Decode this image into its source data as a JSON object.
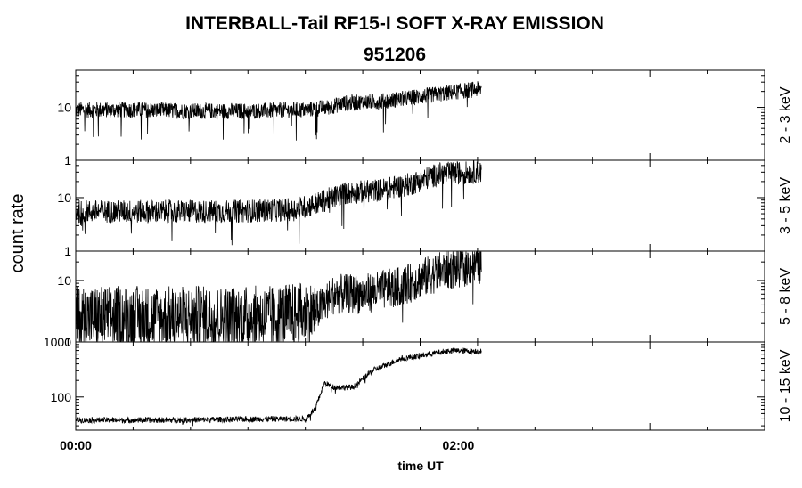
{
  "chart_data": {
    "type": "line",
    "title": "INTERBALL-Tail RF15-I SOFT X-RAY EMISSION",
    "subtitle": "951206",
    "xlabel": "time UT",
    "ylabel": "count rate",
    "x_ticks": [
      "00:00",
      "02:00"
    ],
    "x_range_hours": [
      0,
      3.6
    ],
    "data_end_hours": 2.12,
    "y_scale": "log",
    "panels": [
      {
        "label": "2 - 3 keV",
        "ylim": [
          1,
          50
        ],
        "yticks": [
          "10",
          "1"
        ],
        "series": [
          {
            "t": 0.0,
            "v": 9
          },
          {
            "t": 0.3,
            "v": 9
          },
          {
            "t": 0.6,
            "v": 8.5
          },
          {
            "t": 0.9,
            "v": 8.5
          },
          {
            "t": 1.2,
            "v": 9
          },
          {
            "t": 1.32,
            "v": 10
          },
          {
            "t": 1.4,
            "v": 12
          },
          {
            "t": 1.6,
            "v": 13
          },
          {
            "t": 1.8,
            "v": 16
          },
          {
            "t": 2.0,
            "v": 20
          },
          {
            "t": 2.1,
            "v": 22
          }
        ]
      },
      {
        "label": "3 - 5 keV",
        "ylim": [
          1,
          50
        ],
        "yticks": [
          "10",
          "1"
        ],
        "series": [
          {
            "t": 0.0,
            "v": 5.5
          },
          {
            "t": 0.4,
            "v": 5.5
          },
          {
            "t": 0.8,
            "v": 5.5
          },
          {
            "t": 1.15,
            "v": 6
          },
          {
            "t": 1.27,
            "v": 8
          },
          {
            "t": 1.4,
            "v": 12
          },
          {
            "t": 1.6,
            "v": 14
          },
          {
            "t": 1.75,
            "v": 18
          },
          {
            "t": 1.9,
            "v": 28
          },
          {
            "t": 2.1,
            "v": 30
          }
        ]
      },
      {
        "label": "5 - 8 keV",
        "ylim": [
          1,
          30
        ],
        "yticks": [
          "10",
          "1"
        ],
        "series": [
          {
            "t": 0.0,
            "v": 2.5
          },
          {
            "t": 0.5,
            "v": 2.5
          },
          {
            "t": 1.0,
            "v": 2.5
          },
          {
            "t": 1.25,
            "v": 3
          },
          {
            "t": 1.35,
            "v": 6
          },
          {
            "t": 1.5,
            "v": 6
          },
          {
            "t": 1.7,
            "v": 8
          },
          {
            "t": 1.9,
            "v": 14
          },
          {
            "t": 2.1,
            "v": 18
          }
        ]
      },
      {
        "label": "10 - 15 keV",
        "ylim": [
          25,
          1000
        ],
        "yticks": [
          "1000",
          "100"
        ],
        "series": [
          {
            "t": 0.0,
            "v": 38
          },
          {
            "t": 0.5,
            "v": 38
          },
          {
            "t": 1.0,
            "v": 40
          },
          {
            "t": 1.2,
            "v": 40
          },
          {
            "t": 1.25,
            "v": 60
          },
          {
            "t": 1.3,
            "v": 180
          },
          {
            "t": 1.35,
            "v": 150
          },
          {
            "t": 1.45,
            "v": 150
          },
          {
            "t": 1.55,
            "v": 300
          },
          {
            "t": 1.7,
            "v": 500
          },
          {
            "t": 1.85,
            "v": 600
          },
          {
            "t": 1.95,
            "v": 700
          },
          {
            "t": 2.1,
            "v": 680
          }
        ]
      }
    ]
  }
}
